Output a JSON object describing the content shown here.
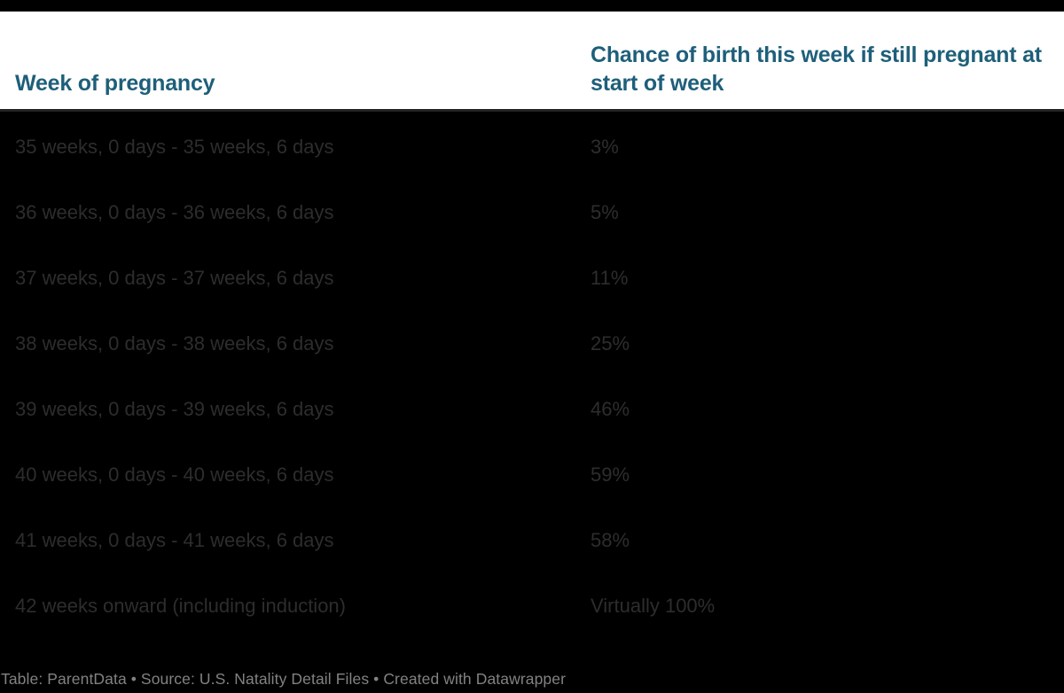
{
  "colors": {
    "page_background": "#000000",
    "header_background": "#ffffff",
    "header_text": "#1e5f7a",
    "body_text": "#2d2d2d",
    "footer_text": "#828282"
  },
  "table": {
    "header": {
      "col1": "Week of pregnancy",
      "col2": "Chance of birth this week if still pregnant at start of week"
    },
    "rows": [
      {
        "week": "35 weeks, 0 days - 35 weeks, 6 days",
        "chance": "3%"
      },
      {
        "week": "36 weeks, 0 days - 36 weeks, 6 days",
        "chance": "5%"
      },
      {
        "week": "37 weeks, 0 days - 37 weeks, 6 days",
        "chance": "11%"
      },
      {
        "week": "38 weeks, 0 days - 38 weeks, 6 days",
        "chance": "25%"
      },
      {
        "week": "39 weeks, 0 days - 39 weeks, 6 days",
        "chance": "46%"
      },
      {
        "week": "40 weeks, 0 days - 40 weeks, 6 days",
        "chance": "59%"
      },
      {
        "week": "41 weeks, 0 days - 41 weeks, 6 days",
        "chance": "58%"
      },
      {
        "week": "42 weeks onward (including induction)",
        "chance": "Virtually 100%"
      }
    ]
  },
  "footer": {
    "attribution": "Table: ParentData • Source: U.S. Natality Detail Files • Created with Datawrapper"
  },
  "chart_data": {
    "type": "table",
    "title": "",
    "columns": [
      "Week of pregnancy",
      "Chance of birth this week if still pregnant at start of week"
    ],
    "rows": [
      [
        "35 weeks, 0 days - 35 weeks, 6 days",
        "3%"
      ],
      [
        "36 weeks, 0 days - 36 weeks, 6 days",
        "5%"
      ],
      [
        "37 weeks, 0 days - 37 weeks, 6 days",
        "11%"
      ],
      [
        "38 weeks, 0 days - 38 weeks, 6 days",
        "25%"
      ],
      [
        "39 weeks, 0 days - 39 weeks, 6 days",
        "46%"
      ],
      [
        "40 weeks, 0 days - 40 weeks, 6 days",
        "59%"
      ],
      [
        "41 weeks, 0 days - 41 weeks, 6 days",
        "58%"
      ],
      [
        "42 weeks onward (including induction)",
        "Virtually 100%"
      ]
    ],
    "numeric_values_percent": [
      3,
      5,
      11,
      25,
      46,
      59,
      58,
      100
    ],
    "source": "U.S. Natality Detail Files",
    "table_credit": "ParentData",
    "tool_credit": "Datawrapper",
    "legend_position": "none",
    "grid": false
  }
}
